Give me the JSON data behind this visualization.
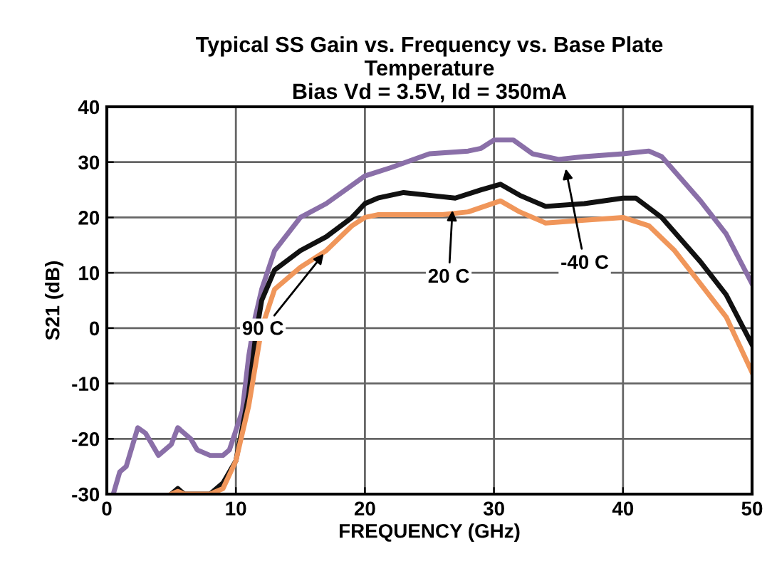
{
  "chart_data": {
    "type": "line",
    "title": "Typical SS Gain vs. Frequency vs. Base Plate\nTemperature\nBias Vd = 3.5V, Id = 350mA",
    "xlabel": "FREQUENCY (GHz)",
    "ylabel": "S21 (dB)",
    "xlim": [
      0,
      50
    ],
    "xticks": [
      0,
      10,
      20,
      30,
      40,
      50
    ],
    "ylim": [
      -30,
      40
    ],
    "yticks": [
      -30,
      -20,
      -10,
      0,
      10,
      20,
      30,
      40
    ],
    "grid": true,
    "legend": false,
    "marker": "none",
    "line_style": "solid",
    "series": [
      {
        "color": "#8a6fa8",
        "x": [
          0.5,
          1,
          1.5,
          2.4,
          3,
          4,
          5,
          5.5,
          6.5,
          7,
          8,
          9,
          9.5,
          10.5,
          11,
          11.5,
          12,
          12.5,
          13,
          15,
          17,
          20,
          22,
          25,
          28,
          29,
          30,
          31.5,
          33,
          35,
          37,
          40,
          42,
          43,
          46,
          48,
          50
        ],
        "values": [
          -30,
          -26,
          -25,
          -18,
          -19,
          -23,
          -21,
          -18,
          -20,
          -22,
          -23,
          -23,
          -22,
          -15,
          -5,
          2,
          7,
          10.5,
          14,
          20,
          22.5,
          27.5,
          29,
          31.5,
          32,
          32.5,
          34,
          34,
          31.5,
          30.5,
          31,
          31.5,
          32,
          31,
          23,
          17,
          8
        ]
      },
      {
        "color": "#111111",
        "x": [
          5,
          5.5,
          6,
          8,
          9,
          10,
          11,
          11.5,
          12,
          13,
          15,
          17,
          19,
          20,
          21,
          23,
          25,
          27,
          29,
          30.5,
          32,
          34,
          37,
          40,
          41,
          43,
          46,
          48,
          50
        ],
        "values": [
          -30,
          -29,
          -30,
          -30,
          -28,
          -24,
          -12,
          -2,
          5,
          10.5,
          14,
          16.5,
          20,
          22.5,
          23.5,
          24.5,
          24,
          23.5,
          25,
          26,
          24,
          22,
          22.5,
          23.5,
          23.5,
          20,
          12,
          6,
          -3
        ]
      },
      {
        "color": "#f0965a",
        "x": [
          5,
          5.5,
          6,
          8,
          9,
          10,
          11,
          12,
          13,
          15,
          17,
          19,
          20,
          21,
          23,
          26,
          28,
          30.5,
          32,
          34,
          37,
          40,
          42,
          44,
          46,
          48,
          50
        ],
        "values": [
          -30,
          -29.5,
          -30,
          -30,
          -29,
          -24,
          -14,
          0,
          7,
          11,
          14,
          18.5,
          20,
          20.5,
          20.5,
          20.5,
          21,
          23,
          21,
          19,
          19.5,
          20,
          18.5,
          14,
          8,
          2,
          -8
        ]
      }
    ],
    "annotations": [
      {
        "text": "20 C",
        "x": 26.8,
        "y": 22
      },
      {
        "text": "90 C",
        "x": 17,
        "y": 14
      },
      {
        "text": "-40 C",
        "x": 35.5,
        "y": 29.5
      }
    ]
  }
}
